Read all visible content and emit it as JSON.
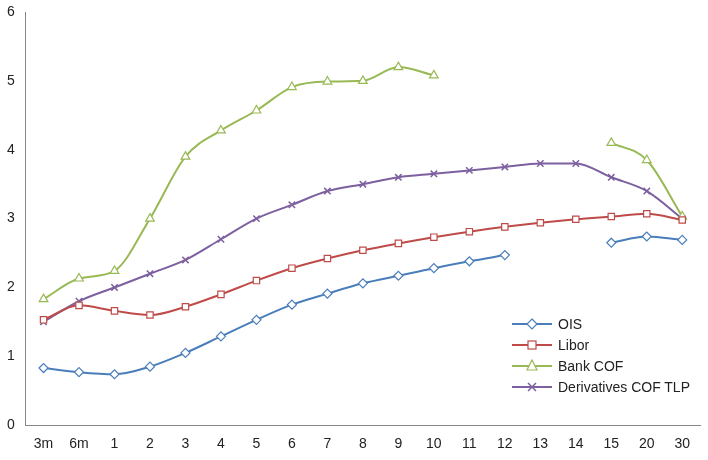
{
  "chart_data": {
    "type": "line",
    "categories": [
      "3m",
      "6m",
      "1",
      "2",
      "3",
      "4",
      "5",
      "6",
      "7",
      "8",
      "9",
      "10",
      "11",
      "12",
      "13",
      "14",
      "15",
      "20",
      "30"
    ],
    "series": [
      {
        "name": "OIS",
        "color": "#4a7ebb",
        "marker": "diamond",
        "values": [
          0.83,
          0.77,
          0.74,
          0.85,
          1.05,
          1.29,
          1.53,
          1.75,
          1.91,
          2.06,
          2.17,
          2.28,
          2.38,
          2.47,
          null,
          null,
          2.65,
          2.74,
          2.69
        ]
      },
      {
        "name": "Libor",
        "color": "#be4b48",
        "marker": "square",
        "values": [
          1.53,
          1.74,
          1.66,
          1.6,
          1.72,
          1.9,
          2.1,
          2.28,
          2.42,
          2.54,
          2.64,
          2.73,
          2.81,
          2.88,
          2.94,
          2.99,
          3.03,
          3.07,
          2.98
        ]
      },
      {
        "name": "Bank COF",
        "color": "#98b954",
        "marker": "triangle",
        "values": [
          1.83,
          2.13,
          2.24,
          3.0,
          3.9,
          4.28,
          4.57,
          4.91,
          4.99,
          5.0,
          5.2,
          5.08,
          null,
          null,
          null,
          null,
          4.1,
          3.85,
          3.03
        ]
      },
      {
        "name": "Derivatives COF TLP",
        "color": "#7d60a0",
        "marker": "x",
        "values": [
          1.5,
          1.8,
          2.0,
          2.2,
          2.4,
          2.7,
          3.0,
          3.2,
          3.4,
          3.5,
          3.6,
          3.65,
          3.7,
          3.75,
          3.8,
          3.8,
          3.6,
          3.4,
          3.0
        ]
      }
    ],
    "ylim": [
      0,
      6
    ],
    "yticks": [
      0,
      1,
      2,
      3,
      4,
      5,
      6
    ],
    "grid": false,
    "legend": "bottom-right"
  }
}
